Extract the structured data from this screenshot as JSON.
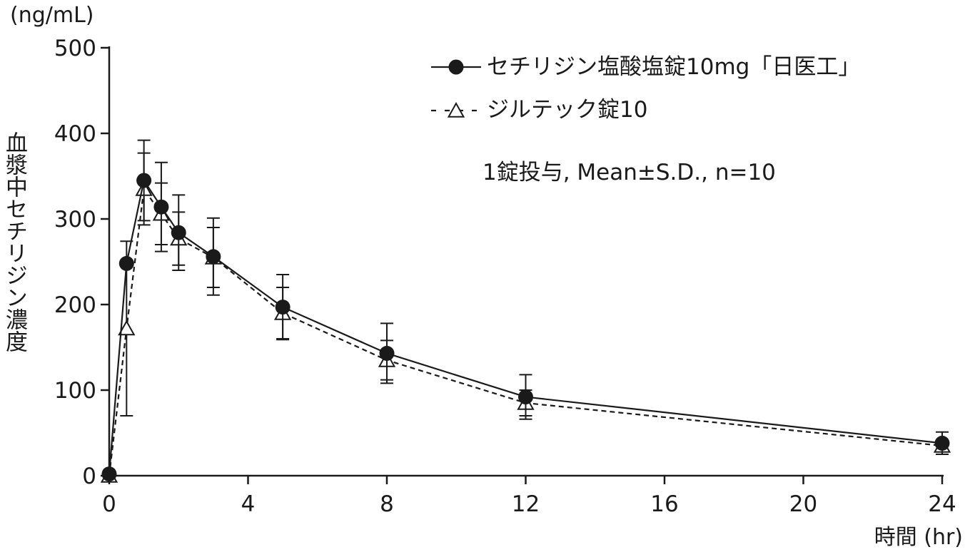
{
  "chart_data": {
    "type": "line",
    "unit_label": "(ng/mL)",
    "xlabel": "時間 (hr)",
    "ylabel": "血漿中セチリジン濃度",
    "annotation": "1錠投与, Mean±S.D., n=10",
    "xlim": [
      0,
      24
    ],
    "ylim": [
      0,
      500
    ],
    "x_ticks": [
      0,
      4,
      8,
      12,
      16,
      20,
      24
    ],
    "y_ticks": [
      0,
      100,
      200,
      300,
      400,
      500
    ],
    "grid": false,
    "legend_position": "top-right",
    "series": [
      {
        "name": "セチリジン塩酸塩錠10mg「日医工」",
        "marker": "filled-circle",
        "line_style": "solid",
        "x": [
          0,
          0.5,
          1,
          1.5,
          2,
          3,
          5,
          8,
          12,
          24
        ],
        "y": [
          2,
          248,
          345,
          314,
          284,
          256,
          197,
          143,
          92,
          38
        ],
        "error": [
          0,
          0,
          47,
          52,
          44,
          45,
          38,
          35,
          26,
          13
        ]
      },
      {
        "name": "ジルテック錠10",
        "marker": "open-triangle",
        "line_style": "dashed",
        "x": [
          0,
          0.5,
          1,
          1.5,
          2,
          3,
          5,
          8,
          12,
          24
        ],
        "y": [
          0,
          172,
          335,
          306,
          277,
          255,
          190,
          135,
          85,
          35
        ],
        "error": [
          0,
          102,
          42,
          36,
          31,
          35,
          30,
          23,
          15,
          5
        ]
      }
    ]
  }
}
